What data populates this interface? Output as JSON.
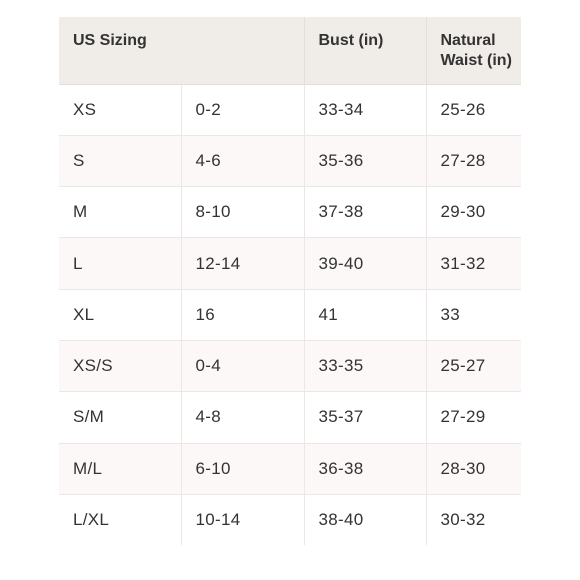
{
  "table": {
    "headers": {
      "us_sizing": "US Sizing",
      "bust": "Bust (in)",
      "waist_line1": "Natural",
      "waist_line2": "Waist (in)"
    },
    "rows": [
      [
        "XS",
        "0-2",
        "33-34",
        "25-26"
      ],
      [
        "S",
        "4-6",
        "35-36",
        "27-28"
      ],
      [
        "M",
        "8-10",
        "37-38",
        "29-30"
      ],
      [
        "L",
        "12-14",
        "39-40",
        "31-32"
      ],
      [
        "XL",
        "16",
        "41",
        "33"
      ],
      [
        "XS/S",
        "0-4",
        "33-35",
        "25-27"
      ],
      [
        "S/M",
        "4-8",
        "35-37",
        "27-29"
      ],
      [
        "M/L",
        "6-10",
        "36-38",
        "28-30"
      ],
      [
        "L/XL",
        "10-14",
        "38-40",
        "30-32"
      ]
    ]
  },
  "colors": {
    "header_bg": "#f0ece8",
    "row_alt_bg": "#fcf8f7",
    "border": "#ece7e4",
    "text": "#333333"
  }
}
